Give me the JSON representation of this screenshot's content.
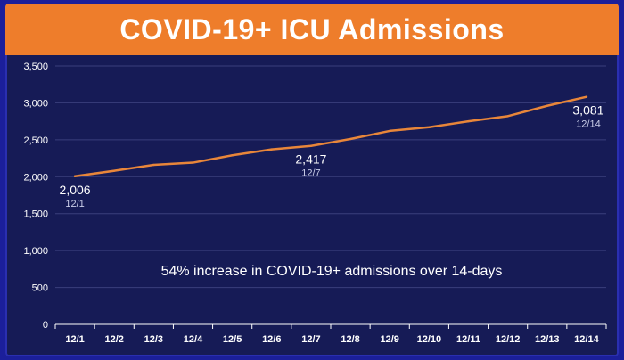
{
  "chart_data": {
    "type": "line",
    "title": "COVID-19+ ICU Admissions",
    "xlabel": "",
    "ylabel": "",
    "ylim": [
      0,
      3500
    ],
    "yticks": [
      0,
      500,
      1000,
      1500,
      2000,
      2500,
      3000,
      3500
    ],
    "ytick_labels": [
      "0",
      "500",
      "1,000",
      "1,500",
      "2,000",
      "2,500",
      "3,000",
      "3,500"
    ],
    "categories": [
      "12/1",
      "12/2",
      "12/3",
      "12/4",
      "12/5",
      "12/6",
      "12/7",
      "12/8",
      "12/9",
      "12/10",
      "12/11",
      "12/12",
      "12/13",
      "12/14"
    ],
    "series": [
      {
        "values": [
          2006,
          2080,
          2160,
          2190,
          2290,
          2370,
          2417,
          2510,
          2620,
          2670,
          2750,
          2820,
          2960,
          3081
        ],
        "color": "#e8863a"
      }
    ],
    "data_labels": [
      {
        "index": 0,
        "value_text": "2,006",
        "date_text": "12/1"
      },
      {
        "index": 6,
        "value_text": "2,417",
        "date_text": "12/7"
      },
      {
        "index": 13,
        "value_text": "3,081",
        "date_text": "12/14"
      }
    ],
    "annotation": "54% increase in COVID-19+ admissions over 14-days",
    "grid": true,
    "legend": "none"
  },
  "colors": {
    "title_bar": "#ee7d2b",
    "background": "#161b56",
    "line": "#e8863a",
    "grid": "#3a3f7c"
  }
}
